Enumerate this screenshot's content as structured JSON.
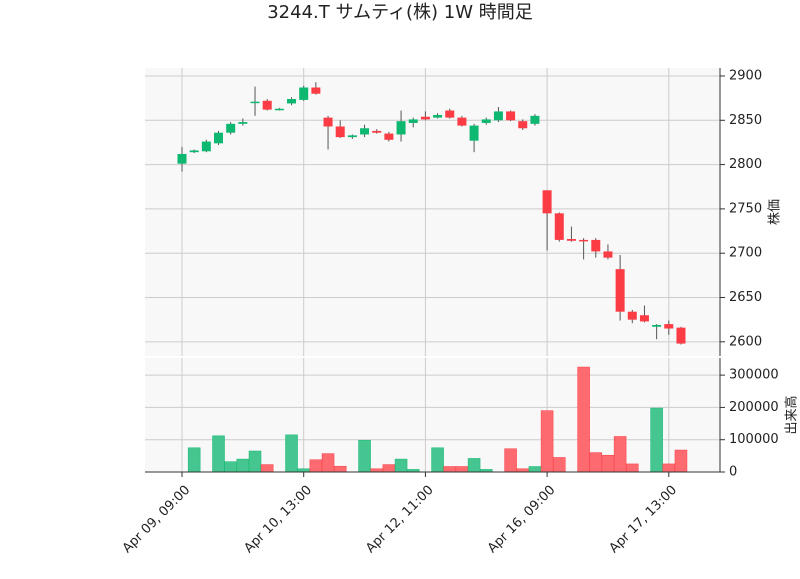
{
  "chart_data": {
    "type": "candlestick",
    "title": "3244.T サムティ(株) 1W 時間足",
    "categories": [
      "Apr 09, 09:00",
      null,
      null,
      null,
      null,
      null,
      null,
      null,
      null,
      null,
      "Apr 10, 13:00",
      null,
      null,
      null,
      null,
      null,
      null,
      null,
      null,
      null,
      "Apr 12, 11:00",
      null,
      null,
      null,
      null,
      null,
      null,
      null,
      null,
      null,
      "Apr 16, 09:00",
      null,
      null,
      null,
      null,
      null,
      null,
      null,
      null,
      null,
      "Apr 17, 13:00",
      null
    ],
    "open": [
      2801,
      2814,
      2815,
      2824,
      2836,
      2846,
      2870,
      2872,
      2862,
      2869,
      2873,
      2887,
      2853,
      2843,
      2831,
      2834,
      2838,
      2835,
      2834,
      2847,
      2854,
      2853,
      2861,
      2853,
      2827,
      2847,
      2850,
      2860,
      2849,
      2846,
      2771,
      2745,
      2716,
      2715,
      2715,
      2702,
      2682,
      2634,
      2630,
      2617,
      2620,
      2616
    ],
    "high": [
      2820,
      2817,
      2828,
      2838,
      2848,
      2852,
      2888,
      2874,
      2864,
      2876,
      2889,
      2893,
      2855,
      2850,
      2834,
      2845,
      2840,
      2837,
      2861,
      2853,
      2860,
      2858,
      2863,
      2855,
      2846,
      2853,
      2865,
      2861,
      2851,
      2857,
      2771,
      2746,
      2730,
      2717,
      2717,
      2710,
      2698,
      2636,
      2641,
      2620,
      2624,
      2617
    ],
    "low": [
      2792,
      2813,
      2814,
      2822,
      2834,
      2844,
      2855,
      2861,
      2861,
      2867,
      2872,
      2879,
      2817,
      2830,
      2829,
      2831,
      2835,
      2826,
      2826,
      2842,
      2850,
      2852,
      2852,
      2843,
      2814,
      2845,
      2848,
      2849,
      2839,
      2844,
      2703,
      2713,
      2713,
      2693,
      2695,
      2693,
      2624,
      2621,
      2622,
      2603,
      2608,
      2597
    ],
    "close": [
      2812,
      2816,
      2826,
      2836,
      2846,
      2848,
      2871,
      2862,
      2863,
      2874,
      2887,
      2880,
      2843,
      2831,
      2833,
      2841,
      2836,
      2828,
      2849,
      2851,
      2851,
      2856,
      2853,
      2844,
      2844,
      2851,
      2860,
      2850,
      2841,
      2855,
      2745,
      2715,
      2714,
      2714,
      2702,
      2695,
      2634,
      2625,
      2623,
      2619,
      2615,
      2598
    ],
    "volume": [
      0,
      75000,
      0,
      112000,
      32000,
      40000,
      65000,
      23000,
      0,
      115000,
      10000,
      38000,
      57000,
      18000,
      0,
      98000,
      10000,
      23000,
      40000,
      8000,
      0,
      75000,
      17000,
      17000,
      42000,
      8000,
      0,
      72000,
      10000,
      17000,
      190000,
      45000,
      0,
      325000,
      60000,
      52000,
      110000,
      25000,
      0,
      198000,
      25000,
      68000
    ],
    "ylabel": "株価",
    "volume_label": "出来高",
    "ylim": [
      2584,
      2909
    ],
    "yticks": [
      2600,
      2650,
      2700,
      2750,
      2800,
      2850,
      2900
    ],
    "volume_ylim": [
      0,
      353000
    ],
    "volume_yticks": [
      0,
      100000,
      200000,
      300000
    ],
    "up_color": "#0fb870",
    "down_color": "#fb3c44",
    "volume_up_color": "#45c58f",
    "volume_down_color": "#fd6b70",
    "grid": true
  }
}
